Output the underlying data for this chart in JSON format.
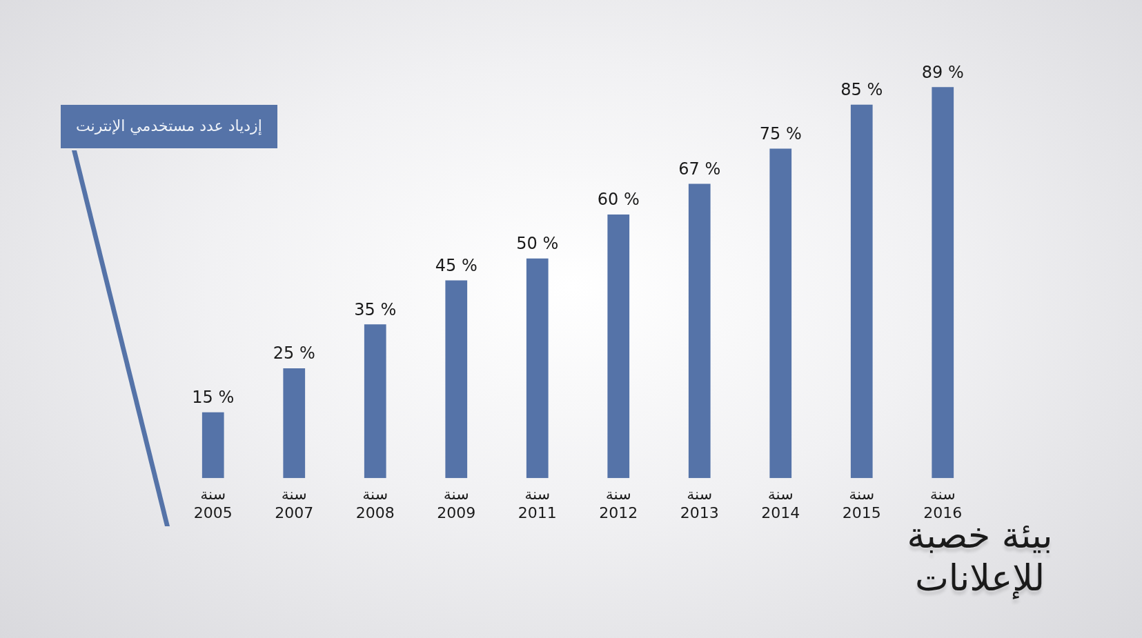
{
  "chart_data": {
    "type": "bar",
    "title": "إزدياد عدد مستخدمي الإنترنت",
    "categories": [
      "سنة 2005",
      "سنة 2007",
      "سنة 2008",
      "سنة 2009",
      "سنة 2011",
      "سنة 2012",
      "سنة 2013",
      "سنة 2014",
      "سنة 2015",
      "سنة 2016"
    ],
    "values": [
      15,
      25,
      35,
      45,
      50,
      60,
      67,
      75,
      85,
      89
    ],
    "value_labels": [
      "15 %",
      "25 %",
      "35 %",
      "45 %",
      "50 %",
      "60 %",
      "67 %",
      "75 %",
      "85 %",
      "89 %"
    ],
    "color": "#5573a8",
    "tick_labels": "x",
    "annotations": [
      "بيئة خصبة للإعلانات"
    ]
  }
}
